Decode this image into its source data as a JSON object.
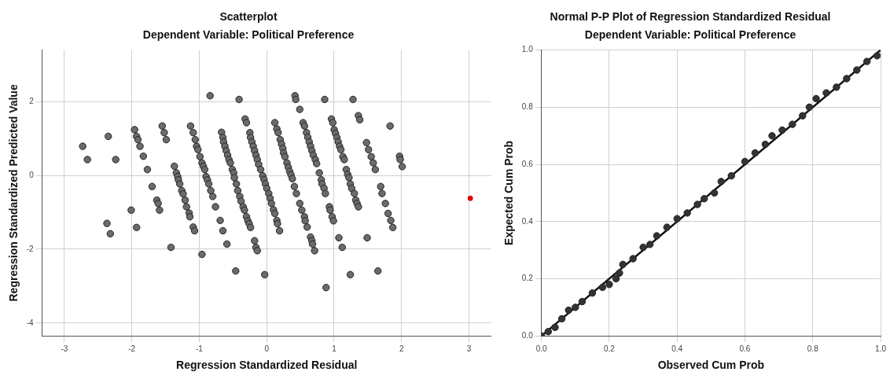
{
  "chart_data": [
    {
      "type": "scatter",
      "title": "Scatterplot",
      "subtitle": "Dependent Variable: Political Preference",
      "xlabel": "Regression Standardized Residual",
      "ylabel": "Regression Standardized Predicted Value",
      "xlim": [
        -3.33,
        3.33
      ],
      "ylim": [
        -4.35,
        3.4
      ],
      "xticks": [
        -3,
        -2,
        -1,
        0,
        1,
        2,
        3
      ],
      "yticks": [
        -4,
        -2,
        0,
        2
      ],
      "grid": true,
      "legend": false,
      "marker": "circle",
      "series": [
        {
          "color": "#6b6b6b",
          "x": [
            -2.73,
            -2.66,
            -2.35,
            -2.24,
            -2.37,
            -2.32,
            -2.01,
            -1.93,
            -1.96,
            -1.93,
            -1.91,
            -1.88,
            -1.83,
            -1.77,
            -1.7,
            -1.63,
            -1.61,
            -1.59,
            -1.55,
            -1.52,
            -1.49,
            -1.42,
            -1.37,
            -1.34,
            -1.32,
            -1.31,
            -1.29,
            -1.26,
            -1.24,
            -1.21,
            -1.19,
            -1.15,
            -1.14,
            -1.09,
            -1.07,
            -1.13,
            -1.09,
            -1.06,
            -1.04,
            -1.02,
            -0.99,
            -0.96,
            -0.94,
            -0.92,
            -0.9,
            -0.88,
            -0.86,
            -0.83,
            -0.8,
            -0.76,
            -0.69,
            -0.65,
            -0.59,
            -0.96,
            -0.84,
            -0.41,
            -0.46,
            -0.67,
            -0.65,
            -0.64,
            -0.62,
            -0.6,
            -0.58,
            -0.56,
            -0.54,
            -0.51,
            -0.49,
            -0.48,
            -0.45,
            -0.43,
            -0.4,
            -0.38,
            -0.35,
            -0.33,
            -0.3,
            -0.28,
            -0.26,
            -0.24,
            -0.18,
            -0.16,
            -0.14,
            -0.32,
            -0.3,
            -0.25,
            -0.24,
            -0.22,
            -0.2,
            -0.18,
            -0.16,
            -0.14,
            -0.12,
            -0.09,
            -0.06,
            -0.04,
            -0.02,
            0.0,
            0.03,
            0.05,
            0.07,
            0.1,
            0.12,
            0.15,
            0.16,
            0.19,
            -0.03,
            0.12,
            0.15,
            0.17,
            0.2,
            0.22,
            0.24,
            0.25,
            0.27,
            0.3,
            0.32,
            0.34,
            0.36,
            0.38,
            0.41,
            0.44,
            0.49,
            0.52,
            0.56,
            0.57,
            0.6,
            0.65,
            0.67,
            0.68,
            0.71,
            0.42,
            0.43,
            0.49,
            0.54,
            0.56,
            0.59,
            0.61,
            0.63,
            0.65,
            0.67,
            0.69,
            0.72,
            0.74,
            0.78,
            0.81,
            0.82,
            0.85,
            0.87,
            0.93,
            0.94,
            0.97,
            0.99,
            0.86,
            0.88,
            0.96,
            0.98,
            1.0,
            1.02,
            1.04,
            1.06,
            1.08,
            1.1,
            1.13,
            1.15,
            1.18,
            1.2,
            1.22,
            1.24,
            1.26,
            1.3,
            1.32,
            1.34,
            1.36,
            1.28,
            1.36,
            1.38,
            1.07,
            1.12,
            1.24,
            1.48,
            1.51,
            1.55,
            1.58,
            1.61,
            1.83,
            1.49,
            1.65,
            1.69,
            1.71,
            1.76,
            1.8,
            1.84,
            1.87,
            1.97,
            1.98,
            2.01
          ],
          "values": [
            0.79,
            0.43,
            1.06,
            0.43,
            -1.3,
            -1.58,
            -0.94,
            -1.41,
            1.24,
            1.06,
            0.97,
            0.79,
            0.52,
            0.16,
            -0.3,
            -0.67,
            -0.76,
            -0.94,
            1.34,
            1.16,
            0.97,
            -1.95,
            0.25,
            0.07,
            -0.03,
            -0.12,
            -0.23,
            -0.41,
            -0.5,
            -0.67,
            -0.85,
            -1.02,
            -1.12,
            -1.4,
            -1.5,
            1.34,
            1.16,
            0.97,
            0.79,
            0.7,
            0.51,
            0.34,
            0.25,
            0.16,
            -0.03,
            -0.12,
            -0.23,
            -0.41,
            -0.57,
            -0.85,
            -1.22,
            -1.5,
            -1.86,
            -2.14,
            2.16,
            2.06,
            -2.59,
            1.17,
            1.03,
            0.91,
            0.79,
            0.67,
            0.55,
            0.43,
            0.34,
            0.16,
            0.07,
            -0.06,
            -0.23,
            -0.41,
            -0.57,
            -0.7,
            -0.85,
            -0.94,
            -1.12,
            -1.23,
            -1.31,
            -1.41,
            -1.77,
            -1.95,
            -2.04,
            1.53,
            1.43,
            1.16,
            1.03,
            0.91,
            0.79,
            0.67,
            0.55,
            0.43,
            0.3,
            0.16,
            -0.01,
            -0.11,
            -0.23,
            -0.35,
            -0.49,
            -0.62,
            -0.76,
            -0.93,
            -1.03,
            -1.22,
            -1.31,
            -1.5,
            -2.69,
            1.43,
            1.26,
            1.16,
            0.97,
            0.85,
            0.73,
            0.61,
            0.51,
            0.34,
            0.22,
            0.11,
            0.02,
            -0.09,
            -0.3,
            -0.49,
            -0.76,
            -0.94,
            -1.12,
            -1.23,
            -1.4,
            -1.67,
            -1.77,
            -1.86,
            -2.04,
            2.16,
            2.06,
            1.79,
            1.43,
            1.34,
            1.16,
            1.03,
            0.91,
            0.79,
            0.67,
            0.55,
            0.43,
            0.32,
            0.07,
            -0.12,
            -0.23,
            -0.35,
            -0.49,
            -0.85,
            -0.94,
            -1.12,
            -1.23,
            2.06,
            -3.04,
            1.53,
            1.43,
            1.24,
            1.14,
            1.03,
            0.91,
            0.79,
            0.7,
            0.51,
            0.43,
            0.16,
            0.03,
            -0.06,
            -0.23,
            -0.35,
            -0.49,
            -0.67,
            -0.76,
            -0.85,
            2.06,
            1.62,
            1.51,
            -1.69,
            -1.95,
            -2.69,
            0.89,
            0.7,
            0.51,
            0.34,
            0.16,
            1.34,
            -1.69,
            -2.59,
            -0.3,
            -0.49,
            -0.76,
            -1.03,
            -1.22,
            -1.41,
            0.52,
            0.43,
            0.24
          ]
        },
        {
          "color": "#e00000",
          "x": [
            3.02
          ],
          "values": [
            -0.62
          ]
        }
      ]
    },
    {
      "type": "scatter",
      "title": "Normal P-P Plot of Regression Standardized Residual",
      "subtitle": "Dependent Variable: Political Preference",
      "xlabel": "Observed Cum Prob",
      "ylabel": "Expected Cum Prob",
      "xlim": [
        0,
        1
      ],
      "ylim": [
        0,
        1
      ],
      "xticks": [
        {
          "value": 0,
          "label": "0.0"
        },
        {
          "value": 0.2,
          "label": "0.2"
        },
        {
          "value": 0.4,
          "label": "0.4"
        },
        {
          "value": 0.6,
          "label": "0.6"
        },
        {
          "value": 0.8,
          "label": "0.8"
        },
        {
          "value": 1,
          "label": "1.0"
        }
      ],
      "yticks": [
        {
          "value": 0,
          "label": "0.0"
        },
        {
          "value": 0.2,
          "label": "0.2"
        },
        {
          "value": 0.4,
          "label": "0.4"
        },
        {
          "value": 0.6,
          "label": "0.6"
        },
        {
          "value": 0.8,
          "label": "0.8"
        },
        {
          "value": 1,
          "label": "1.0"
        }
      ],
      "grid": true,
      "legend": false,
      "marker": "circle",
      "series": [
        {
          "type": "line",
          "color": "#111111",
          "marker": "none",
          "x": [
            0,
            1
          ],
          "values": [
            0,
            1
          ]
        },
        {
          "color": "#333333",
          "x": [
            0.0,
            0.02,
            0.04,
            0.06,
            0.08,
            0.1,
            0.12,
            0.15,
            0.18,
            0.2,
            0.22,
            0.23,
            0.24,
            0.27,
            0.3,
            0.32,
            0.34,
            0.37,
            0.4,
            0.43,
            0.46,
            0.48,
            0.51,
            0.53,
            0.56,
            0.6,
            0.63,
            0.66,
            0.68,
            0.71,
            0.74,
            0.77,
            0.79,
            0.81,
            0.84,
            0.87,
            0.9,
            0.93,
            0.96,
            0.99
          ],
          "values": [
            0.0,
            0.015,
            0.03,
            0.06,
            0.09,
            0.1,
            0.12,
            0.15,
            0.17,
            0.18,
            0.2,
            0.22,
            0.25,
            0.27,
            0.31,
            0.32,
            0.35,
            0.38,
            0.41,
            0.43,
            0.46,
            0.48,
            0.5,
            0.54,
            0.56,
            0.61,
            0.64,
            0.67,
            0.7,
            0.72,
            0.74,
            0.77,
            0.8,
            0.83,
            0.85,
            0.87,
            0.9,
            0.93,
            0.96,
            0.98
          ]
        }
      ]
    }
  ]
}
